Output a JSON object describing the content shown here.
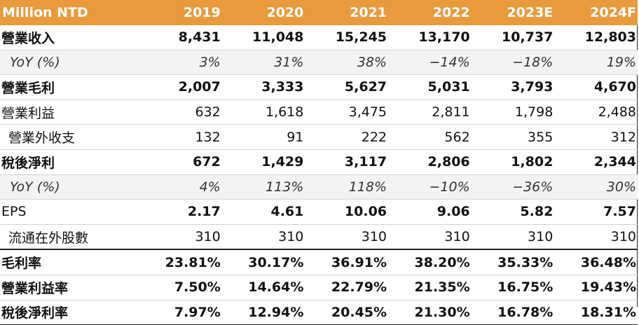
{
  "table": {
    "header": [
      "Million NTD",
      "2019",
      "2020",
      "2021",
      "2022",
      "2023E",
      "2024F"
    ],
    "rows": [
      {
        "label": "營業收入",
        "values": [
          "8,431",
          "11,048",
          "15,245",
          "13,170",
          "10,737",
          "12,803"
        ]
      },
      {
        "label": "YoY (%)",
        "values": [
          "3%",
          "31%",
          "38%",
          "−14%",
          "−18%",
          "19%"
        ]
      },
      {
        "label": "營業毛利",
        "values": [
          "2,007",
          "3,333",
          "5,627",
          "5,031",
          "3,793",
          "4,670"
        ]
      },
      {
        "label": "營業利益",
        "values": [
          "632",
          "1,618",
          "3,475",
          "2,811",
          "1,798",
          "2,488"
        ]
      },
      {
        "label": "營業外收支",
        "values": [
          "132",
          "91",
          "222",
          "562",
          "355",
          "312"
        ]
      },
      {
        "label": "稅後淨利",
        "values": [
          "672",
          "1,429",
          "3,117",
          "2,806",
          "1,802",
          "2,344"
        ]
      },
      {
        "label": "YoY (%)",
        "values": [
          "4%",
          "113%",
          "118%",
          "−10%",
          "−36%",
          "30%"
        ]
      },
      {
        "label": "EPS",
        "values": [
          "2.17",
          "4.61",
          "10.06",
          "9.06",
          "5.82",
          "7.57"
        ]
      },
      {
        "label": "流通在外股數",
        "values": [
          "310",
          "310",
          "310",
          "310",
          "310",
          "310"
        ]
      },
      {
        "label": "毛利率",
        "values": [
          "23.81%",
          "30.17%",
          "36.91%",
          "38.20%",
          "35.33%",
          "36.48%"
        ]
      },
      {
        "label": "營業利益率",
        "values": [
          "7.50%",
          "14.64%",
          "22.79%",
          "21.35%",
          "16.75%",
          "19.43%"
        ]
      },
      {
        "label": "稅後淨利率",
        "values": [
          "7.97%",
          "12.94%",
          "20.45%",
          "21.30%",
          "16.78%",
          "18.31%"
        ]
      }
    ]
  },
  "colors": {
    "header_background": "#e89a3c",
    "header_text": "#ffffff",
    "shaded_row": "#f3f3f3"
  }
}
